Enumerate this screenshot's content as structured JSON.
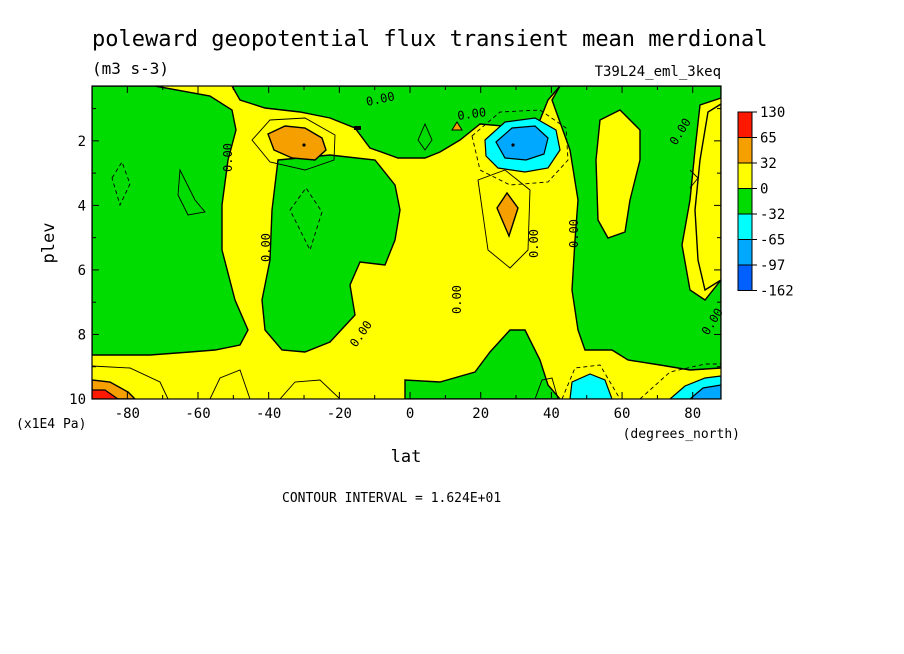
{
  "chart_data": {
    "type": "heatmap",
    "title": "poleward geopotential flux transient mean merdional",
    "units": "(m3 s-3)",
    "dataset": "T39L24_eml_3keq",
    "xlabel": "lat",
    "xunits": "(degrees_north)",
    "ylabel": "plev",
    "yunits": "(x1E4 Pa)",
    "xlim": [
      -90,
      88
    ],
    "ylim": [
      10,
      0.3
    ],
    "x_ticks": [
      -80,
      -60,
      -40,
      -20,
      0,
      20,
      40,
      60,
      80
    ],
    "x_tick_labels": [
      "-80",
      "-60",
      "-40",
      "-20",
      "0",
      "20",
      "40",
      "60",
      "80"
    ],
    "y_ticks": [
      2,
      4,
      6,
      8,
      10
    ],
    "y_tick_labels": [
      "2",
      "4",
      "6",
      "8",
      "10"
    ],
    "contour_interval_text": "CONTOUR INTERVAL = 1.624E+01",
    "contour_label": "0.00",
    "colorbar": {
      "labels": [
        "130",
        "65",
        "32",
        "0",
        "-32",
        "-65",
        "-97",
        "-162"
      ],
      "colors": [
        "#ff1800",
        "#f5a000",
        "#ffff00",
        "#00dc00",
        "#00ffff",
        "#00a8ff",
        "#0060ff"
      ]
    },
    "features": [
      {
        "kind": "high",
        "lat": -28,
        "plev": 2.0,
        "level_index": 1
      },
      {
        "kind": "high",
        "lat": 29,
        "plev": 4.3,
        "level_index": 1
      },
      {
        "kind": "low",
        "lat": 33,
        "plev": 2.0,
        "level_index": 5
      },
      {
        "kind": "high",
        "lat": -85,
        "plev": 9.9,
        "level_index": 0
      },
      {
        "kind": "low",
        "lat": 50,
        "plev": 9.8,
        "level_index": 4
      },
      {
        "kind": "low",
        "lat": 85,
        "plev": 9.9,
        "level_index": 5
      }
    ]
  }
}
